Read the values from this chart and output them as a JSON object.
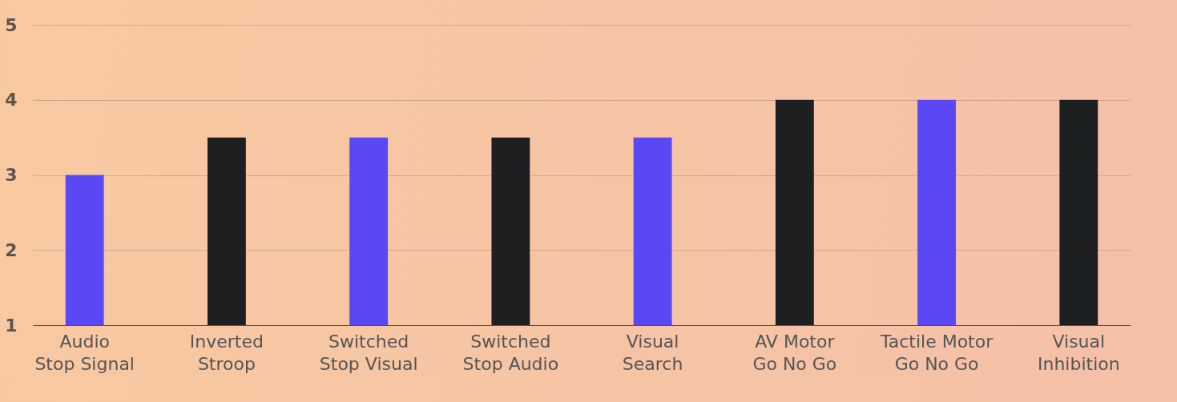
{
  "chart_data": {
    "type": "bar",
    "categories": [
      "Audio\nStop Signal",
      "Inverted\nStroop",
      "Switched\nStop Visual",
      "Switched\nStop Audio",
      "Visual\nSearch",
      "AV Motor\nGo No Go",
      "Tactile Motor\nGo No Go",
      "Visual\nInhibition"
    ],
    "values": [
      3,
      3.5,
      3.5,
      3.5,
      3.5,
      4,
      4,
      4
    ],
    "colors": [
      "#5a48f4",
      "#1e1f21",
      "#5a48f4",
      "#1e1f21",
      "#5a48f4",
      "#1e1f21",
      "#5a48f4",
      "#1e1f21"
    ],
    "ylim": [
      1,
      5
    ],
    "yticks": [
      1,
      2,
      3,
      4,
      5
    ],
    "grid": "y"
  }
}
